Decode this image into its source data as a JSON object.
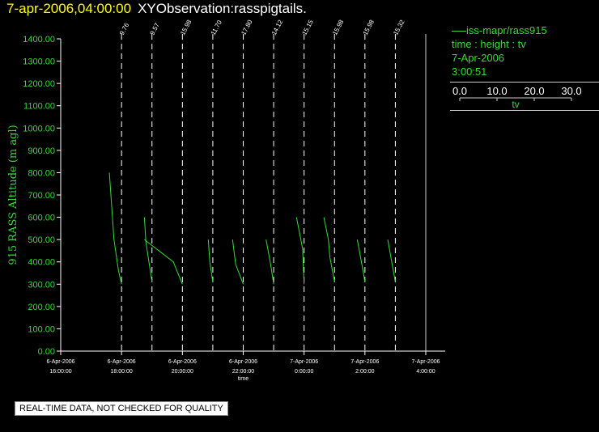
{
  "header": {
    "timestamp": "7-apr-2006,04:00:00",
    "observation": "XYObservation:rasspigtails."
  },
  "legend": {
    "series": "iss-mapr/rass915",
    "axes": "time : height : tv",
    "date": "7-Apr-2006",
    "time": "3:00:51",
    "tv_ticks": [
      "0.0",
      "10.0",
      "20.0",
      "30.0"
    ],
    "tv_label": "tv"
  },
  "footer": {
    "notice": "REAL-TIME DATA, NOT CHECKED FOR QUALITY"
  },
  "colors": {
    "series": "#33dd33",
    "axis": "#ffffff",
    "ylabel": "#33dd33",
    "background": "#000000"
  },
  "chart_data": {
    "type": "line",
    "ylabel": "915 RASS Altitude (m agl)",
    "xlabel": "time",
    "ylim": [
      0,
      1400
    ],
    "xlim": [
      16,
      28
    ],
    "yticks": [
      "0.00",
      "100.00",
      "200.00",
      "300.00",
      "400.00",
      "500.00",
      "600.00",
      "700.00",
      "800.00",
      "900.00",
      "1000.00",
      "1100.00",
      "1200.00",
      "1300.00",
      "1400.00"
    ],
    "xticks": [
      {
        "t": 16,
        "date": "6-Apr-2006",
        "time": "16:00:00"
      },
      {
        "t": 18,
        "date": "6-Apr-2006",
        "time": "18:00:00"
      },
      {
        "t": 20,
        "date": "6-Apr-2006",
        "time": "20:00:00"
      },
      {
        "t": 22,
        "date": "6-Apr-2006",
        "time": "22:00:00"
      },
      {
        "t": 24,
        "date": "7-Apr-2006",
        "time": "0:00:00"
      },
      {
        "t": 26,
        "date": "7-Apr-2006",
        "time": "2:00:00"
      },
      {
        "t": 28,
        "date": "7-Apr-2006",
        "time": "4:00:00"
      }
    ],
    "reference_lines": [
      {
        "t": 18,
        "label": "9.76"
      },
      {
        "t": 19,
        "label": "9.57"
      },
      {
        "t": 20,
        "label": "15.98"
      },
      {
        "t": 21,
        "label": "11.70"
      },
      {
        "t": 22,
        "label": "17.80"
      },
      {
        "t": 23,
        "label": "14.12"
      },
      {
        "t": 24,
        "label": "15.15"
      },
      {
        "t": 25,
        "label": "15.98"
      },
      {
        "t": 26,
        "label": "15.98"
      },
      {
        "t": 27,
        "label": "15.32"
      }
    ],
    "profiles": [
      {
        "points": [
          [
            17.6,
            800
          ],
          [
            17.75,
            500
          ],
          [
            17.9,
            360
          ],
          [
            18.0,
            300
          ]
        ]
      },
      {
        "points": [
          [
            18.75,
            600
          ],
          [
            18.8,
            490
          ],
          [
            19.0,
            310
          ]
        ]
      },
      {
        "points": [
          [
            18.75,
            500
          ],
          [
            19.7,
            400
          ],
          [
            20.0,
            300
          ]
        ]
      },
      {
        "points": [
          [
            20.85,
            500
          ],
          [
            20.9,
            400
          ],
          [
            21.0,
            310
          ]
        ]
      },
      {
        "points": [
          [
            21.65,
            500
          ],
          [
            21.75,
            390
          ],
          [
            22.0,
            300
          ]
        ]
      },
      {
        "points": [
          [
            22.75,
            500
          ],
          [
            22.9,
            390
          ],
          [
            23.0,
            300
          ]
        ]
      },
      {
        "points": [
          [
            23.75,
            600
          ],
          [
            23.95,
            460
          ],
          [
            24.0,
            300
          ]
        ]
      },
      {
        "points": [
          [
            24.65,
            600
          ],
          [
            24.8,
            500
          ],
          [
            24.85,
            420
          ],
          [
            25.0,
            310
          ]
        ]
      },
      {
        "points": [
          [
            25.75,
            500
          ],
          [
            25.95,
            350
          ],
          [
            26.0,
            310
          ]
        ]
      },
      {
        "points": [
          [
            26.75,
            500
          ],
          [
            27.0,
            310
          ]
        ]
      }
    ]
  }
}
